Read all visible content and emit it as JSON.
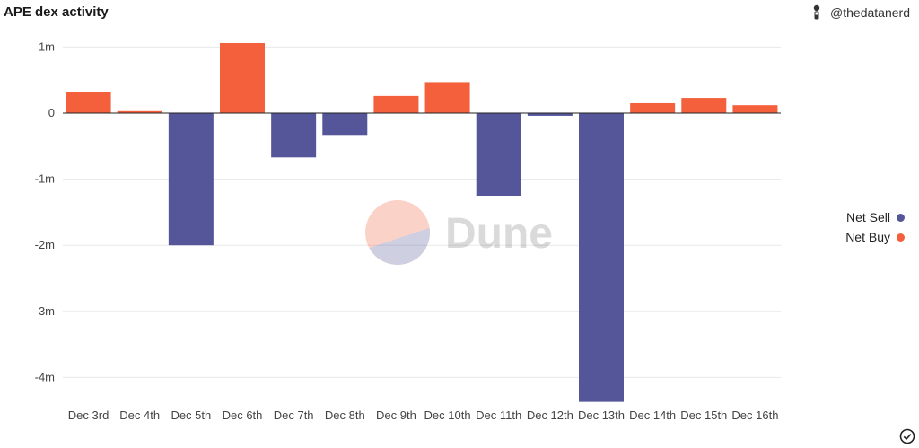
{
  "header": {
    "title": "APE dex activity",
    "author": "@thedatanerd",
    "author_icon": "user-avatar-icon"
  },
  "watermark": {
    "text": "Dune",
    "icon": "dune-logo-icon"
  },
  "legend": {
    "items": [
      {
        "label": "Net Sell",
        "color": "#55569a"
      },
      {
        "label": "Net Buy",
        "color": "#f4603c"
      }
    ]
  },
  "footer": {
    "icon": "check-circle-icon"
  },
  "chart_data": {
    "type": "bar",
    "title": "APE dex activity",
    "categories": [
      "Dec 3rd",
      "Dec 4th",
      "Dec 5th",
      "Dec 6th",
      "Dec 7th",
      "Dec 8th",
      "Dec 9th",
      "Dec 10th",
      "Dec 11th",
      "Dec 12th",
      "Dec 13th",
      "Dec 14th",
      "Dec 15th",
      "Dec 16th"
    ],
    "series": [
      {
        "name": "Net Sell",
        "color": "#55569a",
        "values": [
          0,
          0,
          -2.0,
          0,
          -0.67,
          -0.33,
          0,
          0,
          -1.25,
          -0.04,
          -4.37,
          0,
          0,
          0
        ]
      },
      {
        "name": "Net Buy",
        "color": "#f4603c",
        "values": [
          0.32,
          0.03,
          0,
          1.06,
          0,
          0,
          0.26,
          0.47,
          0,
          0,
          0,
          0.15,
          0.23,
          0.12
        ]
      }
    ],
    "yunit": "m",
    "yticks": [
      1,
      0,
      -1,
      -2,
      -3,
      -4
    ],
    "ytick_labels": [
      "1m",
      "0",
      "-1m",
      "-2m",
      "-3m",
      "-4m"
    ],
    "ylim": [
      -4.45,
      1.15
    ],
    "grid": true,
    "legend_position": "right"
  }
}
